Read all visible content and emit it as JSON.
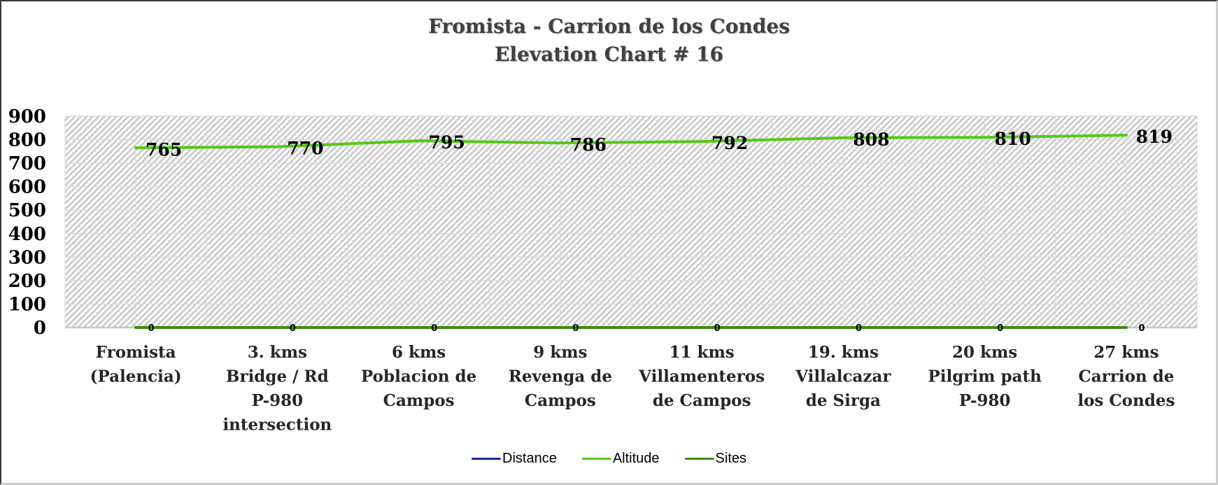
{
  "chart_data": {
    "type": "line",
    "title": "Fromista - Carrion de los Condes",
    "subtitle": "Elevation Chart # 16",
    "xlabel": "",
    "ylabel": "",
    "ylim": [
      0,
      900
    ],
    "yticks": [
      0,
      100,
      200,
      300,
      400,
      500,
      600,
      700,
      800,
      900
    ],
    "grid": true,
    "legend_position": "bottom",
    "categories": [
      [
        "Fromista",
        "(Palencia)"
      ],
      [
        "3. kms",
        "Bridge / Rd",
        "P-980",
        "intersection"
      ],
      [
        "6 kms",
        "Poblacion de",
        "Campos"
      ],
      [
        "9 kms",
        "Revenga de",
        "Campos"
      ],
      [
        "11  kms",
        "Villamenteros",
        "de Campos"
      ],
      [
        "19. kms",
        "Villalcazar",
        "de Sirga"
      ],
      [
        "20  kms",
        "Pilgrim path",
        "P-980"
      ],
      [
        "27  kms",
        "Carrion  de",
        "los Condes"
      ]
    ],
    "series": [
      {
        "name": "Distance",
        "color": "#1a2a9a",
        "values": [
          0,
          0,
          0,
          0,
          0,
          0,
          0,
          0
        ]
      },
      {
        "name": "Altitude",
        "color": "#55c81a",
        "values": [
          765,
          770,
          795,
          786,
          792,
          808,
          810,
          819
        ],
        "data_labels": true
      },
      {
        "name": "Sites",
        "color": "#3d8c0c",
        "values": [
          0,
          0,
          0,
          0,
          0,
          0,
          0,
          0
        ],
        "data_labels": true
      }
    ]
  },
  "legend": [
    {
      "label": "Distance",
      "color": "#1a2a9a"
    },
    {
      "label": "Altitude",
      "color": "#55c81a"
    },
    {
      "label": "Sites",
      "color": "#3d8c0c"
    }
  ]
}
